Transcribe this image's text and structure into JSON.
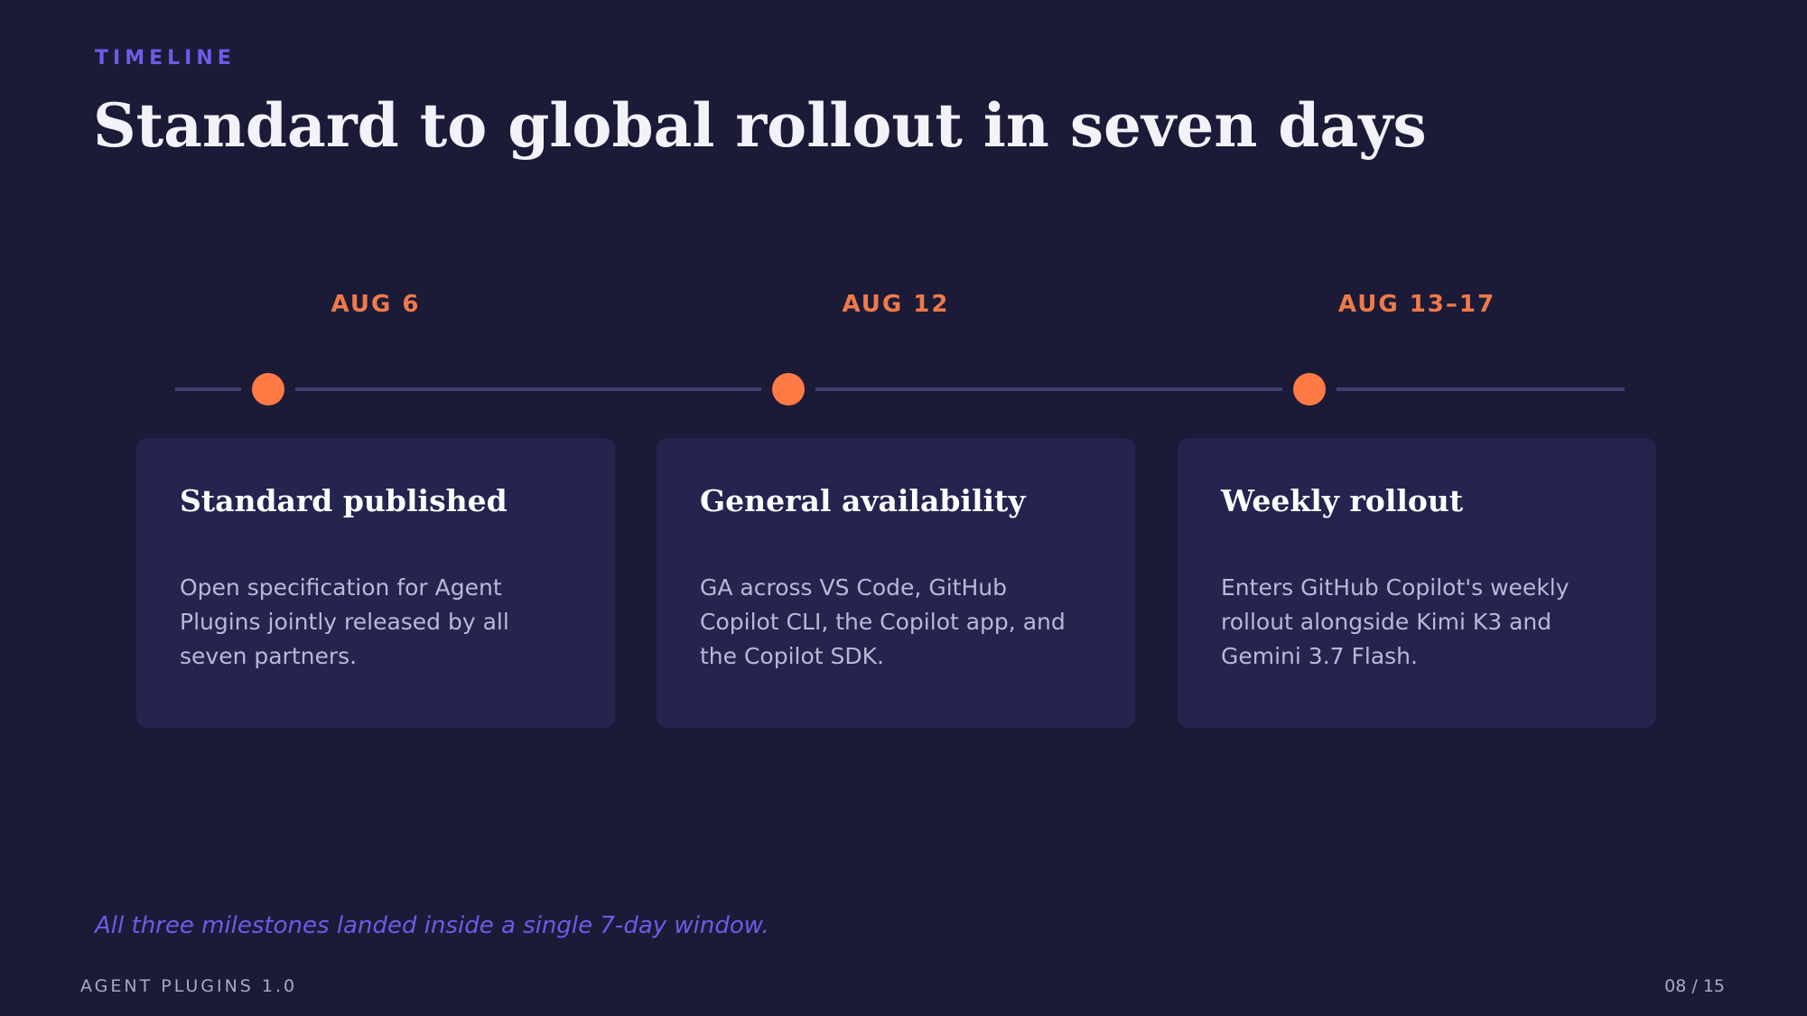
{
  "eyebrow": "TIMELINE",
  "title": "Standard to global rollout in seven days",
  "milestones": [
    {
      "date": "AUG 6",
      "title": "Standard published",
      "body": "Open specification for Agent Plugins jointly released by all seven partners."
    },
    {
      "date": "AUG 12",
      "title": "General availability",
      "body": "GA across VS Code, GitHub Copilot CLI, the Copilot app, and the Copilot SDK."
    },
    {
      "date": "AUG 13–17",
      "title": "Weekly rollout",
      "body": "Enters GitHub Copilot's weekly rollout alongside Kimi K3 and Gemini 3.7 Flash."
    }
  ],
  "footnote": "All three milestones landed inside a single 7-day window.",
  "footer": {
    "brand": "AGENT PLUGINS 1.0",
    "page": "08 / 15"
  }
}
